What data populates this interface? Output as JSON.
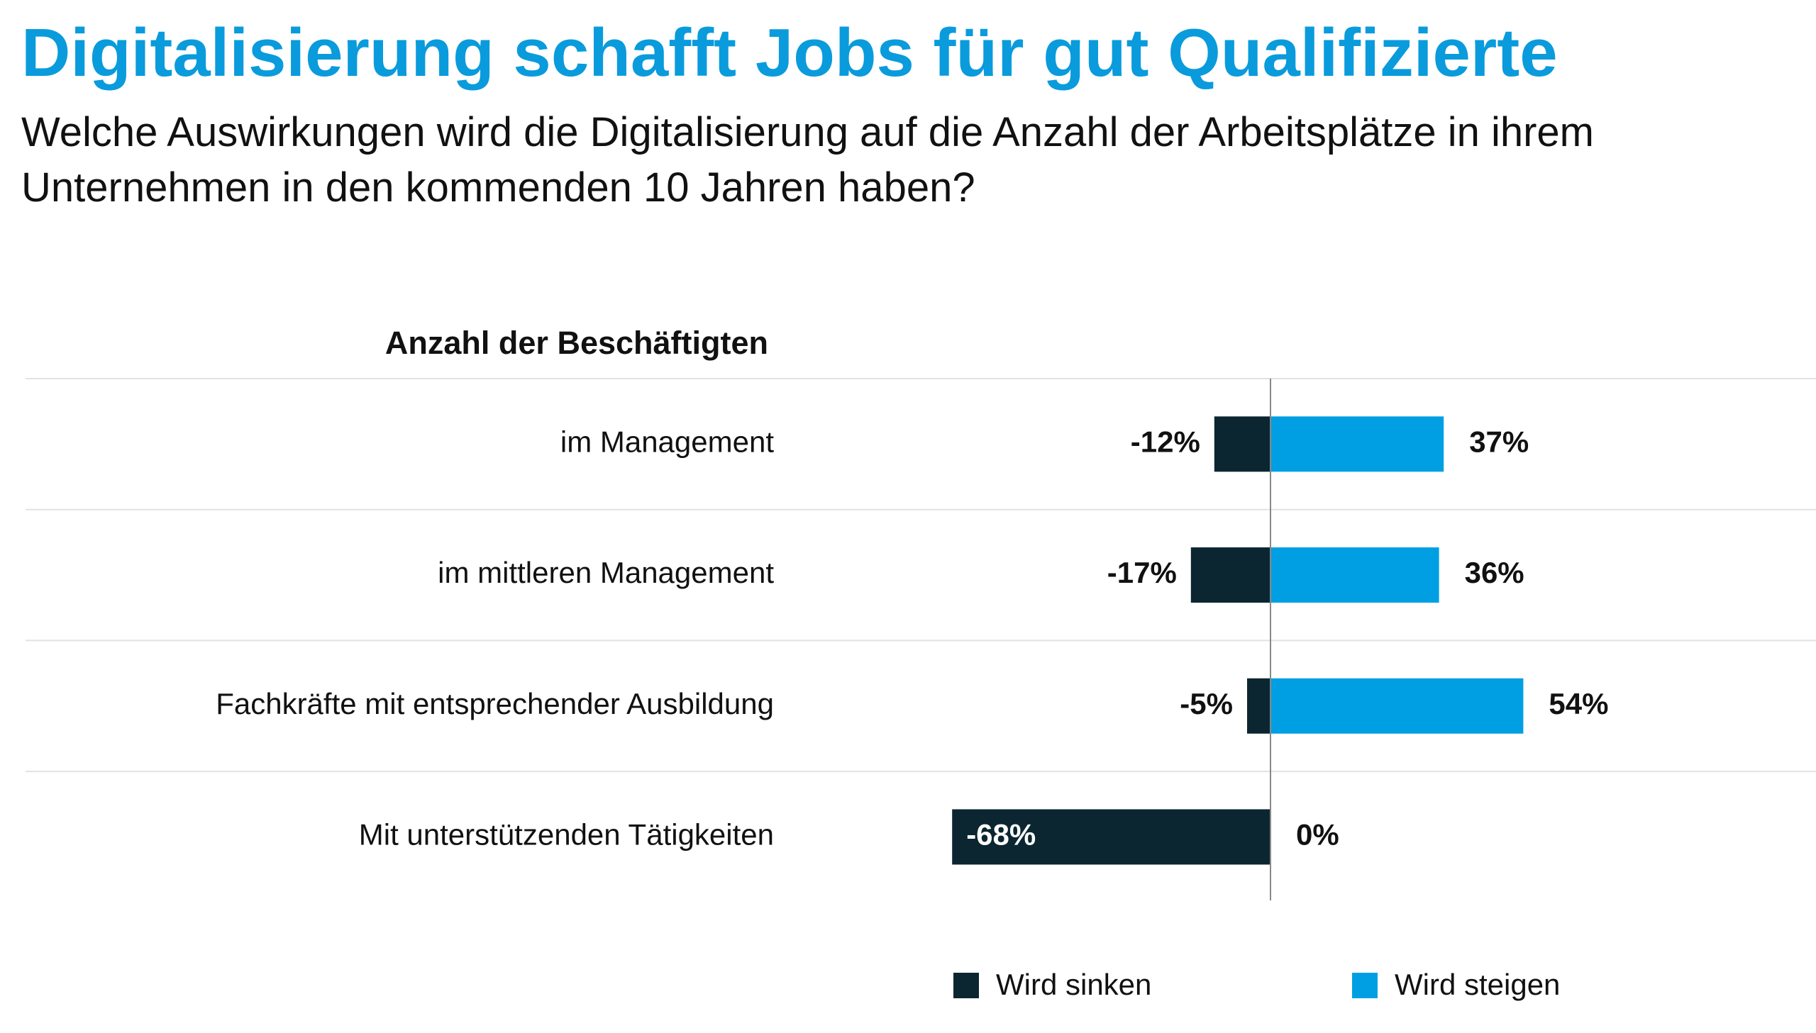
{
  "chart_data": {
    "type": "bar",
    "title": "Digitalisierung schafft Jobs für gut Qualifizierte",
    "subtitle": "Welche Auswirkungen wird die Digitalisierung auf die Anzahl der Arbeitsplätze in ihrem Unternehmen in den kommenden 10 Jahren haben?",
    "category_header": "Anzahl der Beschäftigten",
    "categories": [
      "im Management",
      "im mittleren Management",
      "Fachkräfte mit entsprechender Ausbildung",
      "Mit unterstützenden Tätigkeiten"
    ],
    "series": [
      {
        "name": "Wird sinken",
        "color": "#0b2630",
        "values": [
          -12,
          -17,
          -5,
          -68
        ],
        "value_labels": [
          "-12%",
          "-17%",
          "-5%",
          "-68%"
        ]
      },
      {
        "name": "Wird steigen",
        "color": "#009fe3",
        "values": [
          37,
          36,
          54,
          0
        ],
        "value_labels": [
          "37%",
          "36%",
          "54%",
          "0%"
        ]
      }
    ]
  }
}
